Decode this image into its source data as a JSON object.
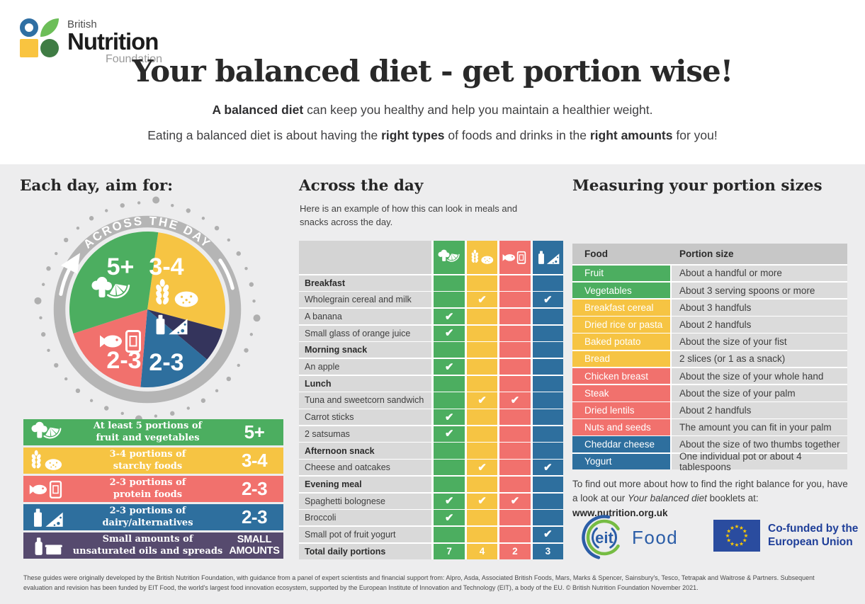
{
  "brand": {
    "line1": "British",
    "line2": "Nutrition",
    "line3": "Foundation"
  },
  "header": {
    "title": "Your balanced diet - get portion wise!",
    "subtitle1_bold": "A balanced diet",
    "subtitle1_rest": " can keep you healthy and help you maintain a healthier weight.",
    "subtitle2_pre": "Eating a balanced diet is about having the ",
    "subtitle2_bold1": "right types",
    "subtitle2_mid": " of foods and drinks in the ",
    "subtitle2_bold2": "right amounts",
    "subtitle2_post": " for you!"
  },
  "aim": {
    "heading": "Each day, aim for:",
    "ring_label": "ACROSS THE DAY",
    "segments": [
      {
        "name": "starchy",
        "label": "3-4",
        "color": "#F6C443",
        "start": 8,
        "end": 105
      },
      {
        "name": "gap",
        "label": "",
        "color": "#34345C",
        "start": 105,
        "end": 130
      },
      {
        "name": "dairy",
        "label": "2-3",
        "color": "#2E6F9E",
        "start": 130,
        "end": 185
      },
      {
        "name": "protein",
        "label": "2-3",
        "color": "#F1716D",
        "start": 185,
        "end": 252
      },
      {
        "name": "fruit-veg",
        "label": "5+",
        "color": "#4CAE60",
        "start": 252,
        "end": 368
      }
    ],
    "legend": [
      {
        "icon": "fruit-veg",
        "text1": "At least 5 portions of",
        "text2": "fruit and vegetables",
        "value": "5+"
      },
      {
        "icon": "starchy",
        "text1": "3-4 portions of",
        "text2": "starchy foods",
        "value": "3-4"
      },
      {
        "icon": "protein",
        "text1": "2-3 portions of",
        "text2": "protein foods",
        "value": "2-3"
      },
      {
        "icon": "dairy",
        "text1": "2-3 portions of",
        "text2": "dairy/alternatives",
        "value": "2-3"
      },
      {
        "icon": "oils",
        "text1": "Small amounts of",
        "text2": "unsaturated oils and spreads",
        "value": "SMALL AMOUNTS"
      }
    ]
  },
  "day": {
    "heading": "Across the day",
    "subtitle": "Here is an example of how this can look in meals and snacks across the day.",
    "check_glyph": "✔",
    "columns": [
      "fruit-veg",
      "starchy",
      "protein",
      "dairy"
    ],
    "rows": [
      {
        "label": "Breakfast",
        "h": true,
        "checks": [
          0,
          0,
          0,
          0
        ]
      },
      {
        "label": "Wholegrain cereal and milk",
        "h": false,
        "checks": [
          0,
          1,
          0,
          1
        ]
      },
      {
        "label": "A banana",
        "h": false,
        "checks": [
          1,
          0,
          0,
          0
        ]
      },
      {
        "label": "Small glass of orange juice",
        "h": false,
        "checks": [
          1,
          0,
          0,
          0
        ]
      },
      {
        "label": "Morning snack",
        "h": true,
        "checks": [
          0,
          0,
          0,
          0
        ]
      },
      {
        "label": "An apple",
        "h": false,
        "checks": [
          1,
          0,
          0,
          0
        ]
      },
      {
        "label": "Lunch",
        "h": true,
        "checks": [
          0,
          0,
          0,
          0
        ]
      },
      {
        "label": "Tuna and sweetcorn sandwich",
        "h": false,
        "checks": [
          0,
          1,
          1,
          0
        ]
      },
      {
        "label": "Carrot sticks",
        "h": false,
        "checks": [
          1,
          0,
          0,
          0
        ]
      },
      {
        "label": "2 satsumas",
        "h": false,
        "checks": [
          1,
          0,
          0,
          0
        ]
      },
      {
        "label": "Afternoon snack",
        "h": true,
        "checks": [
          0,
          0,
          0,
          0
        ]
      },
      {
        "label": "Cheese and oatcakes",
        "h": false,
        "checks": [
          0,
          1,
          0,
          1
        ]
      },
      {
        "label": "Evening meal",
        "h": true,
        "checks": [
          0,
          0,
          0,
          0
        ]
      },
      {
        "label": "Spaghetti bolognese",
        "h": false,
        "checks": [
          1,
          1,
          1,
          0
        ]
      },
      {
        "label": "Broccoli",
        "h": false,
        "checks": [
          1,
          0,
          0,
          0
        ]
      },
      {
        "label": "Small pot of fruit yogurt",
        "h": false,
        "checks": [
          0,
          0,
          0,
          1
        ]
      }
    ],
    "total": {
      "label": "Total daily portions",
      "values": [
        "7",
        "4",
        "2",
        "3"
      ]
    }
  },
  "portions": {
    "heading": "Measuring your portion sizes",
    "col1": "Food",
    "col2": "Portion size",
    "rows": [
      {
        "food": "Fruit",
        "size": "About a handful or more",
        "group": "fruit-veg"
      },
      {
        "food": "Vegetables",
        "size": "About 3 serving spoons or more",
        "group": "fruit-veg"
      },
      {
        "food": "Breakfast cereal",
        "size": "About 3 handfuls",
        "group": "starchy"
      },
      {
        "food": "Dried rice or pasta",
        "size": "About 2 handfuls",
        "group": "starchy"
      },
      {
        "food": "Baked potato",
        "size": "About the size of your fist",
        "group": "starchy"
      },
      {
        "food": "Bread",
        "size": "2 slices (or 1 as a snack)",
        "group": "starchy"
      },
      {
        "food": "Chicken breast",
        "size": "About the size of your whole hand",
        "group": "protein"
      },
      {
        "food": "Steak",
        "size": "About the size of your palm",
        "group": "protein"
      },
      {
        "food": "Dried lentils",
        "size": "About 2 handfuls",
        "group": "protein"
      },
      {
        "food": "Nuts and seeds",
        "size": "The amount you can fit in your palm",
        "group": "protein"
      },
      {
        "food": "Cheddar cheese",
        "size": "About the size of two thumbs together",
        "group": "dairy"
      },
      {
        "food": "Yogurt",
        "size": "One individual pot or about 4 tablespoons",
        "group": "dairy"
      }
    ],
    "note_pre": "To find out more about how to find the right balance for you, have a look at our ",
    "note_italic": "Your balanced diet",
    "note_mid": " booklets at: ",
    "note_bold": "www.nutrition.org.uk"
  },
  "logos": {
    "eit": "eit",
    "eit_food": "Food",
    "eu_line1": "Co-funded by the",
    "eu_line2": "European Union"
  },
  "footer": {
    "text": "These guides were originally developed by the British Nutrition Foundation, with guidance from a panel of expert scientists and financial support from: Alpro, Asda, Associated British Foods, Mars, Marks & Spencer, Sainsbury's, Tesco, Tetrapak and  Waitrose & Partners. Subsequent evaluation and revision has been funded by EIT Food, the world's largest food innovation ecosystem, supported by the European Institute of Innovation and Technology (EIT), a body of the EU. © British Nutrition Foundation November 2021."
  },
  "colors": {
    "green": "#4CAE60",
    "yellow": "#F6C443",
    "red": "#F1716D",
    "blue": "#2E6F9E",
    "purple": "#564A6E",
    "navy": "#34345C",
    "ring_gray": "#B5B5B5",
    "dot_gray": "#AFAFAF",
    "eit_green": "#76BC43",
    "eit_blue": "#2B5DA7",
    "eu_blue": "#2A4C9F",
    "star_yellow": "#FFCC00",
    "group_map": {
      "fruit-veg": "#4CAE60",
      "starchy": "#F6C443",
      "protein": "#F1716D",
      "dairy": "#2E6F9E",
      "oils": "#564A6E"
    }
  }
}
